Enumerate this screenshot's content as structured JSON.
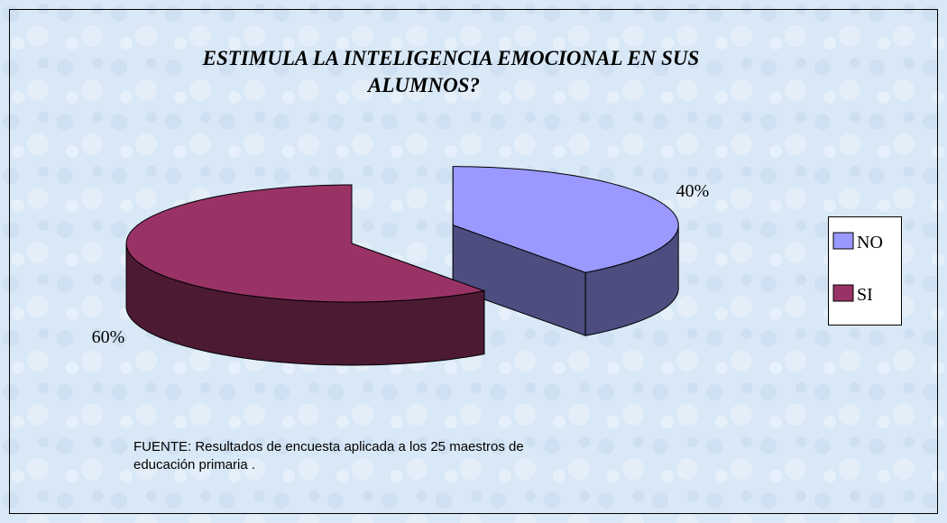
{
  "chart_data": {
    "type": "pie3d",
    "title": [
      "ESTIMULA LA INTELIGENCIA EMOCIONAL EN SUS",
      "ALUMNOS?"
    ],
    "categories": [
      "NO",
      "SI"
    ],
    "values": [
      40,
      60
    ],
    "value_labels": [
      "40%",
      "60%"
    ],
    "colors": [
      "#9999ff",
      "#993366"
    ],
    "legend": "right",
    "source": [
      "FUENTE:  Resultados de encuesta aplicada a los 25 maestros de",
      "educación primaria ."
    ]
  }
}
